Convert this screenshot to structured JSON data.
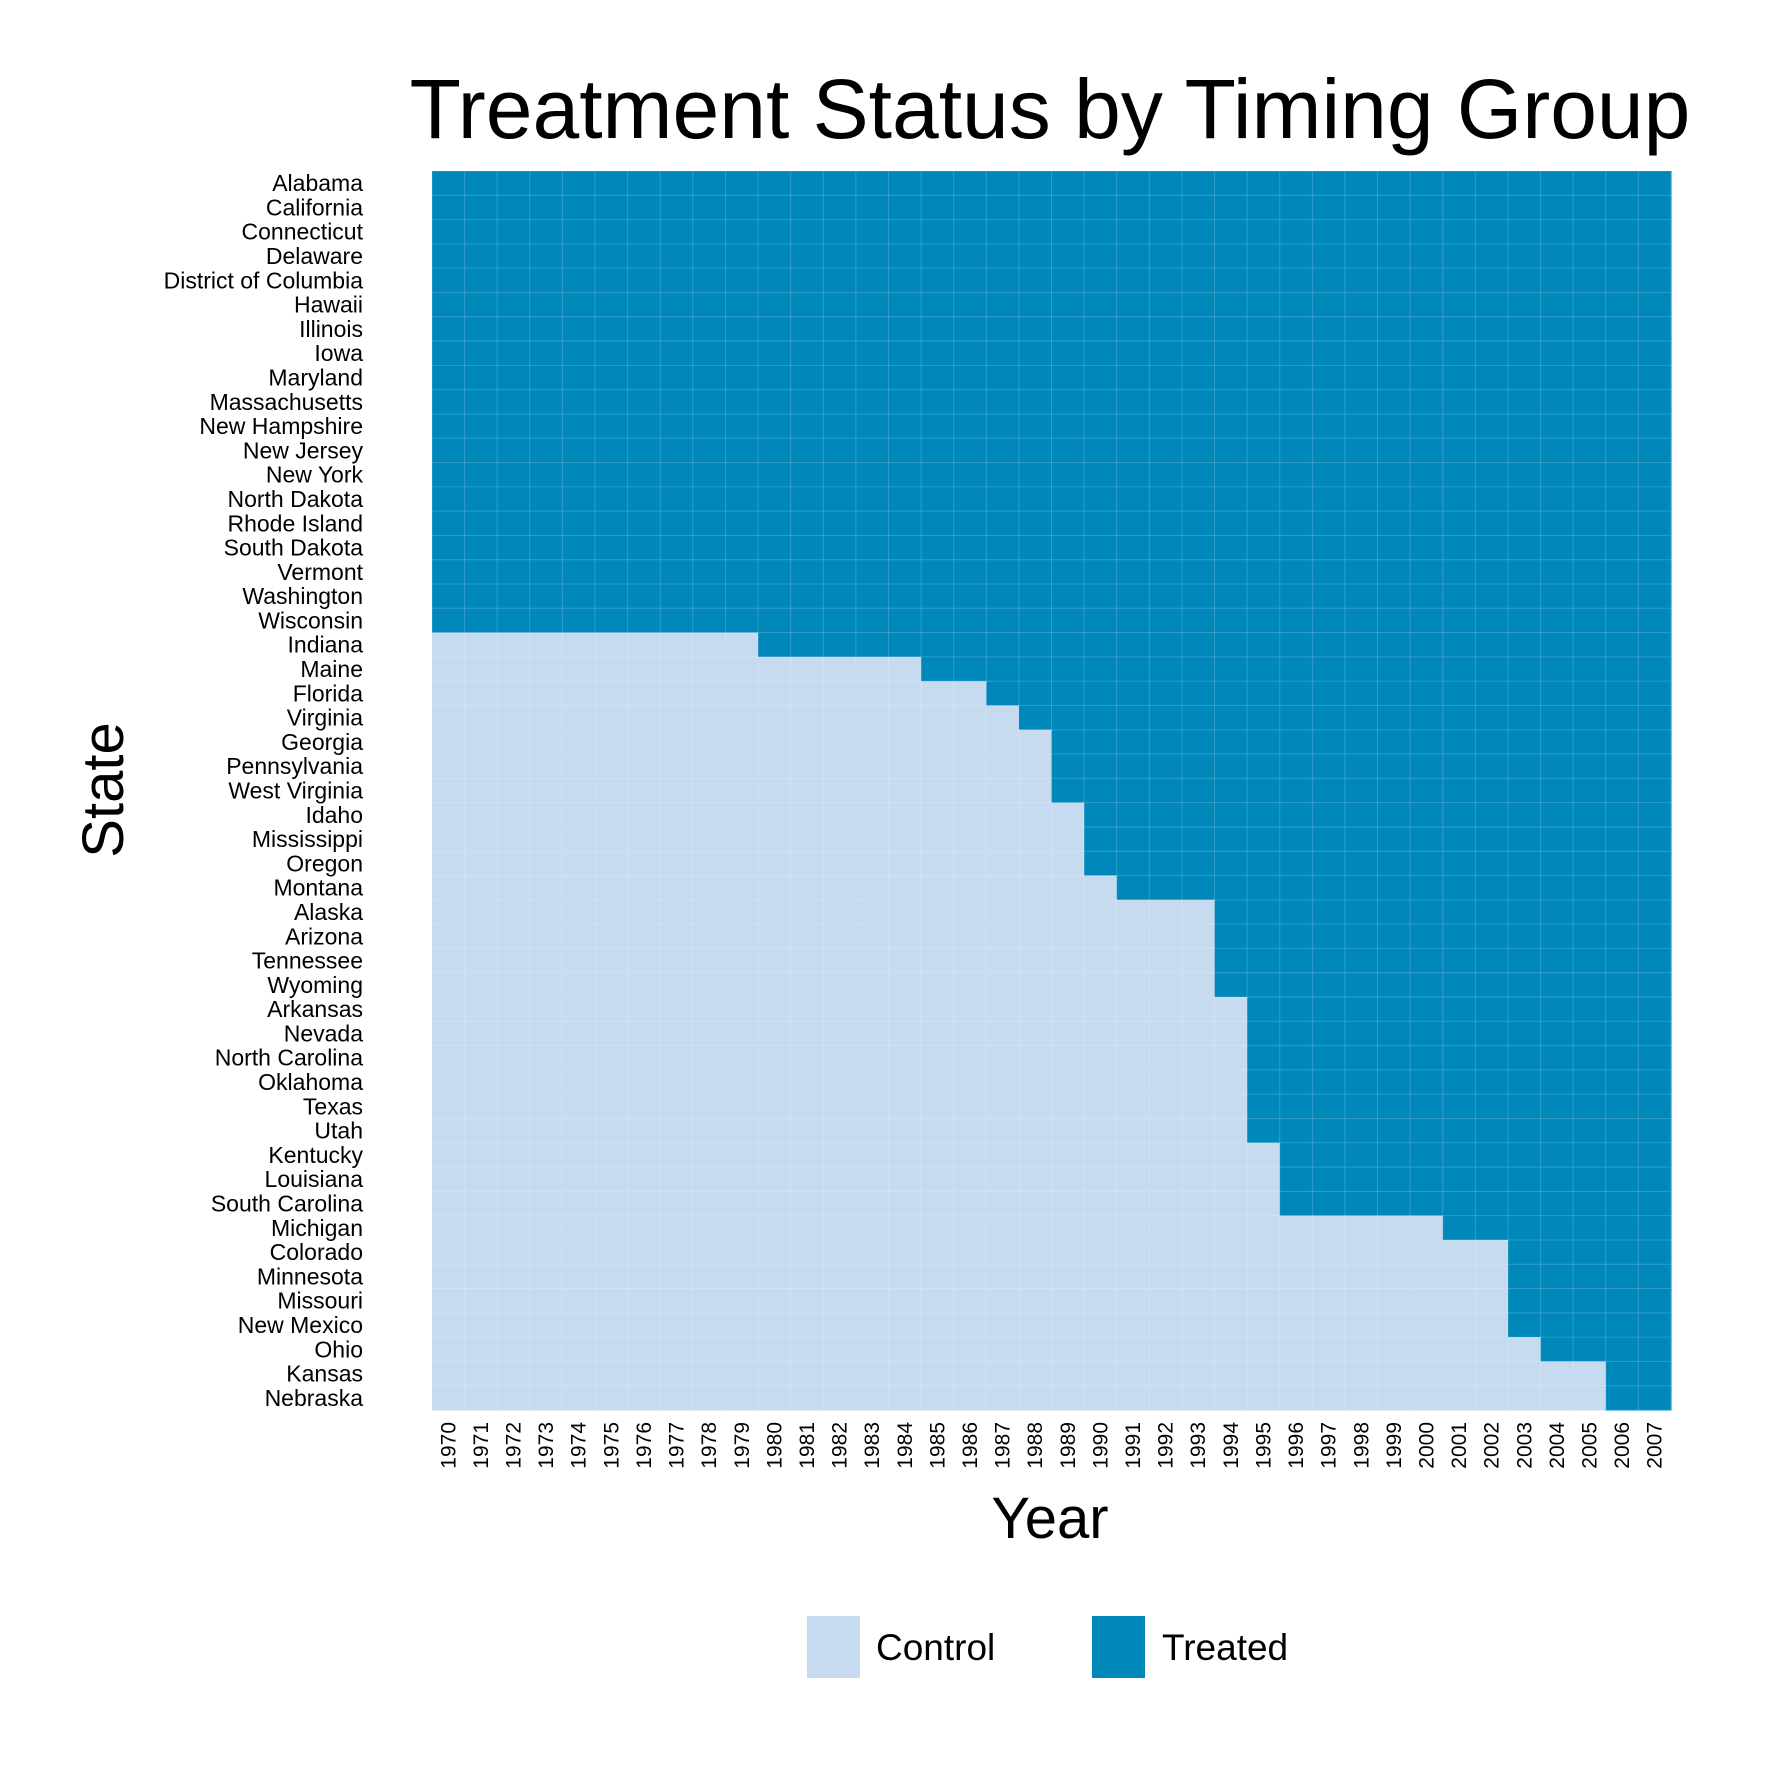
{
  "chart_data": {
    "type": "heatmap",
    "title": "Treatment Status by Timing Group",
    "xlabel": "Year",
    "ylabel": "State",
    "years": [
      1970,
      1971,
      1972,
      1973,
      1974,
      1975,
      1976,
      1977,
      1978,
      1979,
      1980,
      1981,
      1982,
      1983,
      1984,
      1985,
      1986,
      1987,
      1988,
      1989,
      1990,
      1991,
      1992,
      1993,
      1994,
      1995,
      1996,
      1997,
      1998,
      1999,
      2000,
      2001,
      2002,
      2003,
      2004,
      2005,
      2006,
      2007
    ],
    "states": [
      {
        "name": "Alabama",
        "first_treated": 1970
      },
      {
        "name": "California",
        "first_treated": 1970
      },
      {
        "name": "Connecticut",
        "first_treated": 1970
      },
      {
        "name": "Delaware",
        "first_treated": 1970
      },
      {
        "name": "District of Columbia",
        "first_treated": 1970
      },
      {
        "name": "Hawaii",
        "first_treated": 1970
      },
      {
        "name": "Illinois",
        "first_treated": 1970
      },
      {
        "name": "Iowa",
        "first_treated": 1970
      },
      {
        "name": "Maryland",
        "first_treated": 1970
      },
      {
        "name": "Massachusetts",
        "first_treated": 1970
      },
      {
        "name": "New Hampshire",
        "first_treated": 1970
      },
      {
        "name": "New Jersey",
        "first_treated": 1970
      },
      {
        "name": "New York",
        "first_treated": 1970
      },
      {
        "name": "North Dakota",
        "first_treated": 1970
      },
      {
        "name": "Rhode Island",
        "first_treated": 1970
      },
      {
        "name": "South Dakota",
        "first_treated": 1970
      },
      {
        "name": "Vermont",
        "first_treated": 1970
      },
      {
        "name": "Washington",
        "first_treated": 1970
      },
      {
        "name": "Wisconsin",
        "first_treated": 1970
      },
      {
        "name": "Indiana",
        "first_treated": 1980
      },
      {
        "name": "Maine",
        "first_treated": 1985
      },
      {
        "name": "Florida",
        "first_treated": 1987
      },
      {
        "name": "Virginia",
        "first_treated": 1988
      },
      {
        "name": "Georgia",
        "first_treated": 1989
      },
      {
        "name": "Pennsylvania",
        "first_treated": 1989
      },
      {
        "name": "West Virginia",
        "first_treated": 1989
      },
      {
        "name": "Idaho",
        "first_treated": 1990
      },
      {
        "name": "Mississippi",
        "first_treated": 1990
      },
      {
        "name": "Oregon",
        "first_treated": 1990
      },
      {
        "name": "Montana",
        "first_treated": 1991
      },
      {
        "name": "Alaska",
        "first_treated": 1994
      },
      {
        "name": "Arizona",
        "first_treated": 1994
      },
      {
        "name": "Tennessee",
        "first_treated": 1994
      },
      {
        "name": "Wyoming",
        "first_treated": 1994
      },
      {
        "name": "Arkansas",
        "first_treated": 1995
      },
      {
        "name": "Nevada",
        "first_treated": 1995
      },
      {
        "name": "North Carolina",
        "first_treated": 1995
      },
      {
        "name": "Oklahoma",
        "first_treated": 1995
      },
      {
        "name": "Texas",
        "first_treated": 1995
      },
      {
        "name": "Utah",
        "first_treated": 1995
      },
      {
        "name": "Kentucky",
        "first_treated": 1996
      },
      {
        "name": "Louisiana",
        "first_treated": 1996
      },
      {
        "name": "South Carolina",
        "first_treated": 1996
      },
      {
        "name": "Michigan",
        "first_treated": 2001
      },
      {
        "name": "Colorado",
        "first_treated": 2003
      },
      {
        "name": "Minnesota",
        "first_treated": 2003
      },
      {
        "name": "Missouri",
        "first_treated": 2003
      },
      {
        "name": "New Mexico",
        "first_treated": 2003
      },
      {
        "name": "Ohio",
        "first_treated": 2004
      },
      {
        "name": "Kansas",
        "first_treated": 2006
      },
      {
        "name": "Nebraska",
        "first_treated": 2006
      }
    ],
    "legend": {
      "position": "bottom",
      "items": [
        {
          "label": "Control",
          "color": "#c6dbef"
        },
        {
          "label": "Treated",
          "color": "#0088bb"
        }
      ]
    },
    "grid": true
  }
}
